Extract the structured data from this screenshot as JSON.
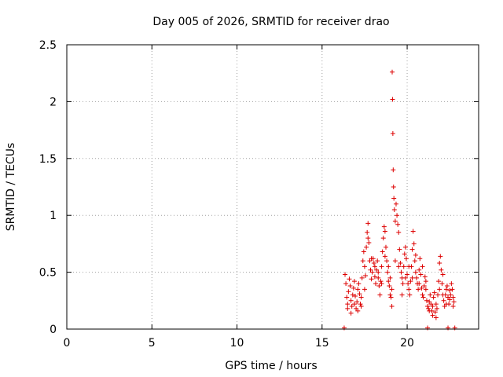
{
  "chart_data": {
    "type": "scatter",
    "title": "Day 005 of 2026, SRMTID for receiver drao",
    "xlabel": "GPS time / hours",
    "ylabel": "SRMTID / TECUs",
    "xlim": [
      0,
      24.2
    ],
    "ylim": [
      0,
      2.5
    ],
    "xticks": [
      0,
      5,
      10,
      15,
      20
    ],
    "yticks": [
      0,
      0.5,
      1,
      1.5,
      2,
      2.5
    ],
    "grid": true,
    "marker": "+",
    "color": "#dd0000",
    "series": [
      {
        "name": "SRMTID",
        "points": [
          [
            16.35,
            0.48
          ],
          [
            16.4,
            0.4
          ],
          [
            16.45,
            0.28
          ],
          [
            16.5,
            0.22
          ],
          [
            16.55,
            0.33
          ],
          [
            16.6,
            0.44
          ],
          [
            16.65,
            0.38
          ],
          [
            16.7,
            0.25
          ],
          [
            16.75,
            0.2
          ],
          [
            16.8,
            0.3
          ],
          [
            16.85,
            0.36
          ],
          [
            16.9,
            0.42
          ],
          [
            16.95,
            0.29
          ],
          [
            17.0,
            0.18
          ],
          [
            17.05,
            0.24
          ],
          [
            17.1,
            0.35
          ],
          [
            17.15,
            0.4
          ],
          [
            17.2,
            0.31
          ],
          [
            17.25,
            0.22
          ],
          [
            17.3,
            0.28
          ],
          [
            17.35,
            0.45
          ],
          [
            17.4,
            0.6
          ],
          [
            17.45,
            0.68
          ],
          [
            17.5,
            0.55
          ],
          [
            17.55,
            0.47
          ],
          [
            17.6,
            0.72
          ],
          [
            17.65,
            0.85
          ],
          [
            17.7,
            0.93
          ],
          [
            17.75,
            0.76
          ],
          [
            17.8,
            0.6
          ],
          [
            17.85,
            0.52
          ],
          [
            17.9,
            0.44
          ],
          [
            17.95,
            0.5
          ],
          [
            18.0,
            0.62
          ],
          [
            18.05,
            0.58
          ],
          [
            18.1,
            0.46
          ],
          [
            18.15,
            0.4
          ],
          [
            18.2,
            0.52
          ],
          [
            18.25,
            0.6
          ],
          [
            18.3,
            0.45
          ],
          [
            18.35,
            0.38
          ],
          [
            18.4,
            0.3
          ],
          [
            18.45,
            0.42
          ],
          [
            18.5,
            0.55
          ],
          [
            18.55,
            0.68
          ],
          [
            18.6,
            0.8
          ],
          [
            18.65,
            0.9
          ],
          [
            18.7,
            0.86
          ],
          [
            18.75,
            0.72
          ],
          [
            18.8,
            0.6
          ],
          [
            18.85,
            0.5
          ],
          [
            18.9,
            0.42
          ],
          [
            18.95,
            0.38
          ],
          [
            19.0,
            0.3
          ],
          [
            19.05,
            0.28
          ],
          [
            19.1,
            0.35
          ],
          [
            19.12,
            2.26
          ],
          [
            19.14,
            2.02
          ],
          [
            19.16,
            1.72
          ],
          [
            19.18,
            1.4
          ],
          [
            19.2,
            1.25
          ],
          [
            19.22,
            1.15
          ],
          [
            19.25,
            1.05
          ],
          [
            19.3,
            0.95
          ],
          [
            19.35,
            1.1
          ],
          [
            19.4,
            1.0
          ],
          [
            19.45,
            0.92
          ],
          [
            19.5,
            0.85
          ],
          [
            19.55,
            0.7
          ],
          [
            19.6,
            0.58
          ],
          [
            19.65,
            0.5
          ],
          [
            19.7,
            0.45
          ],
          [
            19.75,
            0.4
          ],
          [
            19.8,
            0.55
          ],
          [
            19.85,
            0.66
          ],
          [
            19.9,
            0.72
          ],
          [
            19.95,
            0.62
          ],
          [
            20.0,
            0.48
          ],
          [
            20.05,
            0.4
          ],
          [
            20.1,
            0.35
          ],
          [
            20.15,
            0.3
          ],
          [
            20.2,
            0.42
          ],
          [
            20.25,
            0.55
          ],
          [
            20.3,
            0.7
          ],
          [
            20.35,
            0.86
          ],
          [
            20.4,
            0.75
          ],
          [
            20.45,
            0.6
          ],
          [
            20.5,
            0.5
          ],
          [
            20.55,
            0.45
          ],
          [
            20.6,
            0.4
          ],
          [
            20.65,
            0.35
          ],
          [
            20.7,
            0.52
          ],
          [
            20.75,
            0.62
          ],
          [
            20.8,
            0.48
          ],
          [
            20.85,
            0.36
          ],
          [
            20.9,
            0.3
          ],
          [
            20.95,
            0.28
          ],
          [
            21.0,
            0.38
          ],
          [
            21.05,
            0.46
          ],
          [
            21.1,
            0.35
          ],
          [
            21.15,
            0.25
          ],
          [
            21.2,
            0.2
          ],
          [
            21.25,
            0.18
          ],
          [
            21.3,
            0.24
          ],
          [
            21.35,
            0.3
          ],
          [
            21.4,
            0.22
          ],
          [
            21.45,
            0.16
          ],
          [
            21.5,
            0.2
          ],
          [
            21.55,
            0.28
          ],
          [
            21.6,
            0.32
          ],
          [
            21.65,
            0.15
          ],
          [
            21.7,
            0.1
          ],
          [
            21.75,
            0.18
          ],
          [
            21.8,
            0.3
          ],
          [
            21.85,
            0.42
          ],
          [
            21.9,
            0.58
          ],
          [
            21.95,
            0.64
          ],
          [
            22.0,
            0.52
          ],
          [
            22.05,
            0.4
          ],
          [
            22.1,
            0.3
          ],
          [
            22.15,
            0.25
          ],
          [
            22.2,
            0.2
          ],
          [
            22.25,
            0.3
          ],
          [
            22.3,
            0.35
          ],
          [
            22.35,
            0.38
          ],
          [
            22.4,
            0.28
          ],
          [
            22.45,
            0.22
          ],
          [
            22.5,
            0.26
          ],
          [
            22.55,
            0.3
          ],
          [
            22.6,
            0.4
          ],
          [
            22.65,
            0.35
          ],
          [
            22.7,
            0.28
          ],
          [
            22.75,
            0.24
          ],
          [
            16.5,
            0.18
          ],
          [
            16.7,
            0.14
          ],
          [
            16.9,
            0.22
          ],
          [
            17.1,
            0.16
          ],
          [
            17.3,
            0.2
          ],
          [
            17.5,
            0.35
          ],
          [
            17.7,
            0.8
          ],
          [
            17.9,
            0.62
          ],
          [
            18.1,
            0.55
          ],
          [
            18.3,
            0.5
          ],
          [
            18.5,
            0.4
          ],
          [
            18.7,
            0.64
          ],
          [
            18.9,
            0.55
          ],
          [
            19.0,
            0.45
          ],
          [
            19.1,
            0.2
          ],
          [
            19.3,
            0.6
          ],
          [
            19.5,
            0.55
          ],
          [
            19.7,
            0.3
          ],
          [
            19.9,
            0.45
          ],
          [
            20.1,
            0.55
          ],
          [
            20.3,
            0.45
          ],
          [
            20.5,
            0.65
          ],
          [
            20.7,
            0.4
          ],
          [
            20.9,
            0.55
          ],
          [
            21.1,
            0.42
          ],
          [
            21.3,
            0.16
          ],
          [
            21.5,
            0.12
          ],
          [
            21.7,
            0.22
          ],
          [
            21.9,
            0.35
          ],
          [
            22.1,
            0.48
          ],
          [
            22.3,
            0.22
          ],
          [
            22.5,
            0.34
          ],
          [
            22.7,
            0.2
          ],
          [
            16.3,
            0.01
          ],
          [
            21.2,
            0.01
          ],
          [
            22.4,
            0.01
          ],
          [
            22.8,
            0.01
          ]
        ]
      }
    ]
  }
}
